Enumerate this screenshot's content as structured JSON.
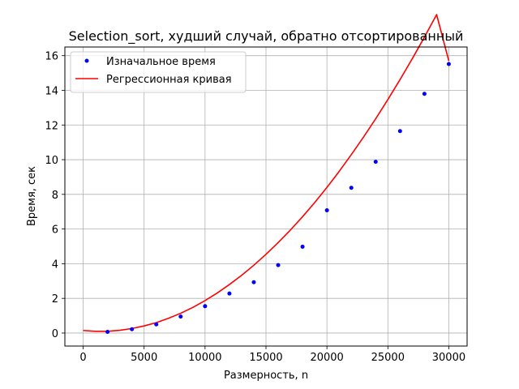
{
  "chart_data": {
    "type": "scatter",
    "title": "Selection_sort, худший случай, обратно отсортированный",
    "xlabel": "Размерность, n",
    "ylabel": "Время, сек",
    "xlim": [
      -1500,
      31500
    ],
    "ylim": [
      -0.75,
      16.5
    ],
    "xticks": [
      0,
      5000,
      10000,
      15000,
      20000,
      25000,
      30000
    ],
    "xtick_labels": [
      "0",
      "5000",
      "10000",
      "15000",
      "20000",
      "25000",
      "30000"
    ],
    "yticks": [
      0,
      2,
      4,
      6,
      8,
      10,
      12,
      14,
      16
    ],
    "ytick_labels": [
      "0",
      "2",
      "4",
      "6",
      "8",
      "10",
      "12",
      "14",
      "16"
    ],
    "grid": true,
    "legend_position": "top-left",
    "series": [
      {
        "name": "Изначальное время",
        "kind": "points",
        "color": "#0000ff",
        "x": [
          2000,
          4000,
          6000,
          8000,
          10000,
          12000,
          14000,
          16000,
          18000,
          20000,
          22000,
          24000,
          26000,
          28000,
          30000
        ],
        "y": [
          0.07,
          0.22,
          0.5,
          0.95,
          1.55,
          2.28,
          2.93,
          3.92,
          4.98,
          7.08,
          8.38,
          9.88,
          11.65,
          13.8,
          15.52
        ]
      },
      {
        "name": "Регрессионная кривая",
        "kind": "line",
        "color": "#ff0000",
        "x": [
          0,
          1000,
          2000,
          3000,
          4000,
          5000,
          6000,
          7000,
          8000,
          9000,
          10000,
          11000,
          12000,
          13000,
          14000,
          15000,
          16000,
          17000,
          18000,
          19000,
          20000,
          21000,
          22000,
          23000,
          24000,
          25000,
          26000,
          27000,
          28000,
          29000,
          30000
        ],
        "y": [
          0.15,
          0.1,
          0.1,
          0.16,
          0.26,
          0.41,
          0.6,
          0.85,
          1.14,
          1.48,
          1.87,
          2.31,
          2.8,
          3.33,
          3.91,
          4.54,
          5.22,
          5.94,
          6.71,
          7.53,
          8.4,
          9.32,
          10.29,
          11.3,
          12.36,
          13.47,
          14.62,
          15.82,
          17.07,
          18.37,
          15.7
        ]
      }
    ]
  }
}
